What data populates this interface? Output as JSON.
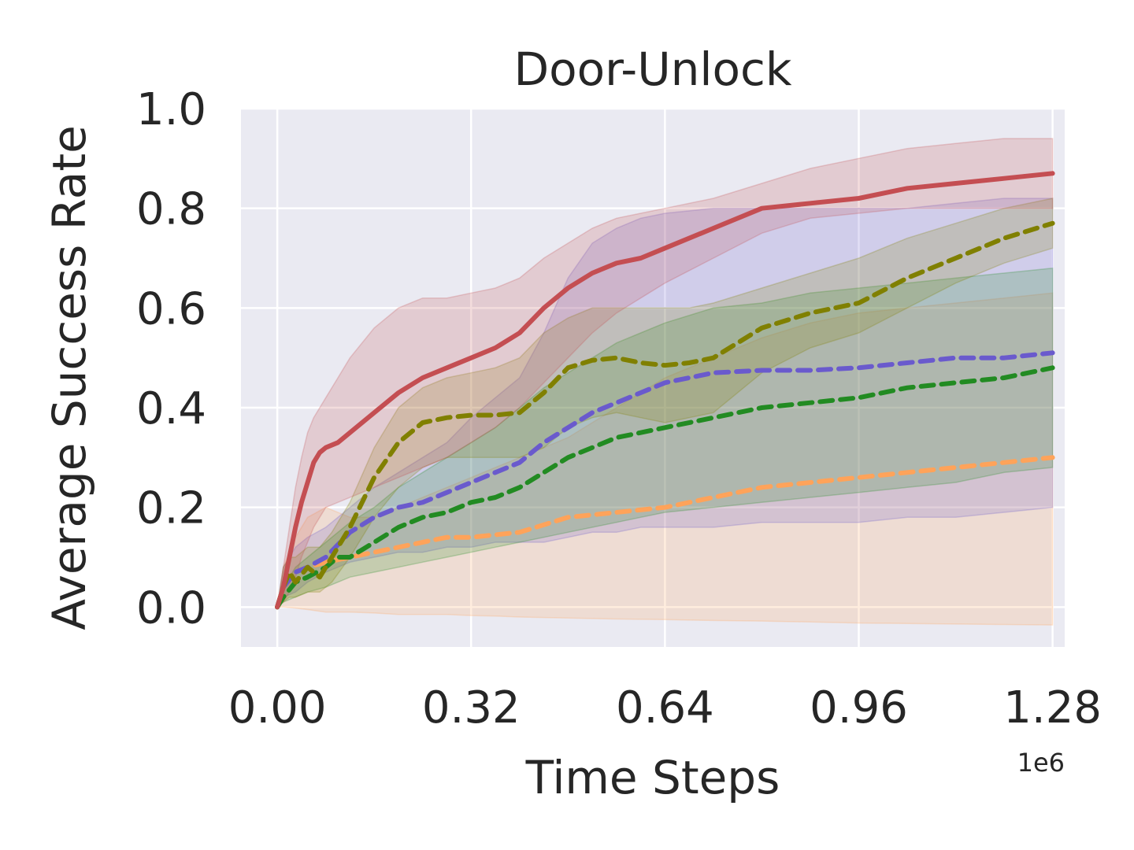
{
  "chart_data": {
    "type": "line",
    "title": "Door-Unlock",
    "xlabel": "Time Steps",
    "ylabel": "Average Success Rate",
    "x_offset_label": "1e6",
    "xlim": [
      -0.06,
      1.3
    ],
    "ylim": [
      -0.08,
      1.0
    ],
    "xticks": [
      0.0,
      0.32,
      0.64,
      0.96,
      1.28
    ],
    "xtick_labels": [
      "0.00",
      "0.32",
      "0.64",
      "0.96",
      "1.28"
    ],
    "yticks": [
      0.0,
      0.2,
      0.4,
      0.6,
      0.8,
      1.0
    ],
    "ytick_labels": [
      "0.0",
      "0.2",
      "0.4",
      "0.6",
      "0.8",
      "1.0"
    ],
    "grid": true,
    "legend": "none",
    "background": "#eaeaf2",
    "series": [
      {
        "color": "#ffa35a",
        "dash": true,
        "x": [
          0.0,
          0.01,
          0.03,
          0.05,
          0.08,
          0.12,
          0.16,
          0.2,
          0.24,
          0.28,
          0.32,
          0.36,
          0.4,
          0.48,
          0.56,
          0.64,
          0.72,
          0.8,
          0.88,
          0.96,
          1.04,
          1.12,
          1.2,
          1.28
        ],
        "y": [
          0.0,
          0.04,
          0.07,
          0.08,
          0.09,
          0.1,
          0.11,
          0.12,
          0.13,
          0.14,
          0.14,
          0.145,
          0.15,
          0.18,
          0.19,
          0.2,
          0.22,
          0.24,
          0.25,
          0.26,
          0.27,
          0.28,
          0.29,
          0.3
        ],
        "upper": [
          0.0,
          0.08,
          0.14,
          0.18,
          0.2,
          0.18,
          0.18,
          0.2,
          0.22,
          0.24,
          0.26,
          0.28,
          0.3,
          0.34,
          0.4,
          0.46,
          0.5,
          0.54,
          0.57,
          0.59,
          0.6,
          0.61,
          0.62,
          0.63
        ],
        "lower": [
          0.0,
          0.0,
          -0.002,
          -0.005,
          -0.01,
          -0.01,
          -0.012,
          -0.015,
          -0.015,
          -0.015,
          -0.017,
          -0.018,
          -0.02,
          -0.022,
          -0.024,
          -0.025,
          -0.027,
          -0.028,
          -0.03,
          -0.032,
          -0.033,
          -0.034,
          -0.035,
          -0.036
        ]
      },
      {
        "color": "#6a5acd",
        "dash": true,
        "x": [
          0.0,
          0.01,
          0.03,
          0.05,
          0.08,
          0.12,
          0.16,
          0.2,
          0.24,
          0.28,
          0.32,
          0.36,
          0.4,
          0.44,
          0.48,
          0.52,
          0.56,
          0.6,
          0.64,
          0.72,
          0.8,
          0.88,
          0.96,
          1.04,
          1.12,
          1.2,
          1.28
        ],
        "y": [
          0.0,
          0.04,
          0.07,
          0.08,
          0.1,
          0.15,
          0.18,
          0.2,
          0.21,
          0.23,
          0.25,
          0.27,
          0.29,
          0.33,
          0.36,
          0.39,
          0.41,
          0.43,
          0.45,
          0.47,
          0.475,
          0.475,
          0.48,
          0.49,
          0.5,
          0.5,
          0.51
        ],
        "upper": [
          0.0,
          0.08,
          0.12,
          0.14,
          0.16,
          0.2,
          0.24,
          0.27,
          0.3,
          0.33,
          0.38,
          0.42,
          0.46,
          0.55,
          0.66,
          0.73,
          0.76,
          0.78,
          0.79,
          0.8,
          0.8,
          0.8,
          0.8,
          0.8,
          0.81,
          0.82,
          0.82
        ],
        "lower": [
          0.0,
          0.02,
          0.03,
          0.05,
          0.07,
          0.09,
          0.1,
          0.11,
          0.11,
          0.12,
          0.12,
          0.13,
          0.13,
          0.13,
          0.14,
          0.15,
          0.15,
          0.16,
          0.16,
          0.16,
          0.17,
          0.17,
          0.17,
          0.18,
          0.18,
          0.19,
          0.2
        ]
      },
      {
        "color": "#228b22",
        "dash": true,
        "x": [
          0.0,
          0.01,
          0.03,
          0.05,
          0.08,
          0.1,
          0.12,
          0.16,
          0.2,
          0.24,
          0.28,
          0.32,
          0.36,
          0.4,
          0.44,
          0.48,
          0.52,
          0.56,
          0.6,
          0.64,
          0.72,
          0.8,
          0.88,
          0.96,
          1.04,
          1.12,
          1.2,
          1.28
        ],
        "y": [
          0.0,
          0.02,
          0.05,
          0.06,
          0.08,
          0.1,
          0.1,
          0.13,
          0.16,
          0.18,
          0.19,
          0.21,
          0.22,
          0.24,
          0.27,
          0.3,
          0.32,
          0.34,
          0.35,
          0.36,
          0.38,
          0.4,
          0.41,
          0.42,
          0.44,
          0.45,
          0.46,
          0.48
        ],
        "upper": [
          0.0,
          0.04,
          0.08,
          0.1,
          0.13,
          0.15,
          0.17,
          0.2,
          0.24,
          0.27,
          0.3,
          0.33,
          0.36,
          0.4,
          0.44,
          0.47,
          0.5,
          0.53,
          0.55,
          0.57,
          0.6,
          0.61,
          0.63,
          0.64,
          0.65,
          0.66,
          0.67,
          0.68
        ],
        "lower": [
          0.0,
          0.01,
          0.02,
          0.03,
          0.04,
          0.05,
          0.06,
          0.07,
          0.08,
          0.09,
          0.1,
          0.11,
          0.12,
          0.13,
          0.14,
          0.15,
          0.16,
          0.17,
          0.18,
          0.19,
          0.2,
          0.21,
          0.22,
          0.23,
          0.24,
          0.25,
          0.27,
          0.28
        ]
      },
      {
        "color": "#808000",
        "dash": true,
        "x": [
          0.0,
          0.01,
          0.02,
          0.03,
          0.05,
          0.07,
          0.09,
          0.12,
          0.16,
          0.2,
          0.24,
          0.28,
          0.32,
          0.36,
          0.4,
          0.44,
          0.48,
          0.52,
          0.56,
          0.6,
          0.64,
          0.68,
          0.72,
          0.8,
          0.88,
          0.96,
          1.04,
          1.12,
          1.2,
          1.28
        ],
        "y": [
          0.0,
          0.04,
          0.07,
          0.05,
          0.08,
          0.06,
          0.1,
          0.16,
          0.26,
          0.33,
          0.37,
          0.38,
          0.385,
          0.385,
          0.39,
          0.43,
          0.48,
          0.495,
          0.5,
          0.49,
          0.485,
          0.49,
          0.5,
          0.56,
          0.59,
          0.61,
          0.66,
          0.7,
          0.74,
          0.77
        ],
        "upper": [
          0.0,
          0.08,
          0.1,
          0.1,
          0.12,
          0.12,
          0.15,
          0.21,
          0.32,
          0.4,
          0.44,
          0.46,
          0.47,
          0.48,
          0.5,
          0.55,
          0.58,
          0.6,
          0.6,
          0.6,
          0.6,
          0.6,
          0.61,
          0.64,
          0.67,
          0.7,
          0.74,
          0.77,
          0.8,
          0.82
        ],
        "lower": [
          0.0,
          0.01,
          0.02,
          0.02,
          0.03,
          0.03,
          0.05,
          0.1,
          0.18,
          0.24,
          0.28,
          0.3,
          0.3,
          0.3,
          0.3,
          0.32,
          0.36,
          0.38,
          0.39,
          0.38,
          0.37,
          0.38,
          0.39,
          0.47,
          0.52,
          0.55,
          0.6,
          0.65,
          0.69,
          0.72
        ]
      },
      {
        "color": "#c44e52",
        "dash": false,
        "x": [
          0.0,
          0.01,
          0.02,
          0.03,
          0.04,
          0.05,
          0.06,
          0.07,
          0.08,
          0.1,
          0.12,
          0.16,
          0.2,
          0.24,
          0.28,
          0.32,
          0.36,
          0.4,
          0.44,
          0.48,
          0.52,
          0.56,
          0.6,
          0.64,
          0.72,
          0.8,
          0.88,
          0.96,
          1.04,
          1.12,
          1.2,
          1.28
        ],
        "y": [
          0.0,
          0.04,
          0.1,
          0.16,
          0.21,
          0.25,
          0.29,
          0.31,
          0.32,
          0.33,
          0.35,
          0.39,
          0.43,
          0.46,
          0.48,
          0.5,
          0.52,
          0.55,
          0.6,
          0.64,
          0.67,
          0.69,
          0.7,
          0.72,
          0.76,
          0.8,
          0.81,
          0.82,
          0.84,
          0.85,
          0.86,
          0.87
        ],
        "upper": [
          0.0,
          0.08,
          0.16,
          0.24,
          0.3,
          0.35,
          0.38,
          0.4,
          0.42,
          0.46,
          0.5,
          0.56,
          0.6,
          0.62,
          0.62,
          0.63,
          0.64,
          0.66,
          0.7,
          0.73,
          0.76,
          0.78,
          0.79,
          0.8,
          0.82,
          0.85,
          0.88,
          0.9,
          0.92,
          0.93,
          0.94,
          0.94
        ],
        "lower": [
          0.0,
          0.01,
          0.03,
          0.06,
          0.1,
          0.13,
          0.16,
          0.18,
          0.2,
          0.21,
          0.22,
          0.24,
          0.26,
          0.28,
          0.3,
          0.33,
          0.36,
          0.4,
          0.45,
          0.5,
          0.55,
          0.59,
          0.62,
          0.65,
          0.7,
          0.75,
          0.78,
          0.79,
          0.8,
          0.8,
          0.8,
          0.8
        ]
      }
    ]
  }
}
